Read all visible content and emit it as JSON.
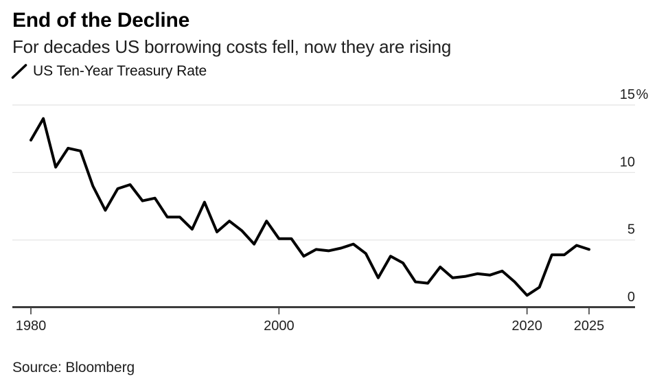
{
  "header": {
    "title": "End of the Decline",
    "subtitle": "For decades US borrowing costs fell, now they are rising"
  },
  "legend": {
    "label": "US Ten-Year Treasury Rate",
    "marker_icon": "diagonal-line-icon"
  },
  "footer": {
    "source": "Source: Bloomberg"
  },
  "colors": {
    "line": "#000000",
    "grid": "#e2e2e2",
    "axis": "#3c3c3c",
    "tick_label": "#1f1f1f"
  },
  "chart_data": {
    "type": "line",
    "title": "End of the Decline",
    "subtitle": "For decades US borrowing costs fell, now they are rising",
    "legend_entries": [
      "US Ten-Year Treasury Rate"
    ],
    "legend_position": "top-left",
    "grid": "horizontal-only",
    "xlabel": "",
    "ylabel": "",
    "y_unit": "%",
    "xlim": [
      1980,
      2025
    ],
    "ylim": [
      0,
      15
    ],
    "x_ticks": [
      1980,
      2000,
      2020,
      2025
    ],
    "x_tick_labels": [
      "1980",
      "2000",
      "2020",
      "2025"
    ],
    "y_ticks": [
      0,
      5,
      10,
      15
    ],
    "y_tick_labels": [
      "0",
      "5",
      "10",
      "15%"
    ],
    "x": [
      1980,
      1981,
      1982,
      1983,
      1984,
      1985,
      1986,
      1987,
      1988,
      1989,
      1990,
      1991,
      1992,
      1993,
      1994,
      1995,
      1996,
      1997,
      1998,
      1999,
      2000,
      2001,
      2002,
      2003,
      2004,
      2005,
      2006,
      2007,
      2008,
      2009,
      2010,
      2011,
      2012,
      2013,
      2014,
      2015,
      2016,
      2017,
      2018,
      2019,
      2020,
      2021,
      2022,
      2023,
      2024,
      2025
    ],
    "series": [
      {
        "name": "US Ten-Year Treasury Rate",
        "values": [
          12.4,
          14.0,
          10.4,
          11.8,
          11.6,
          9.0,
          7.2,
          8.8,
          9.1,
          7.9,
          8.1,
          6.7,
          6.7,
          5.8,
          7.8,
          5.6,
          6.4,
          5.7,
          4.7,
          6.4,
          5.1,
          5.1,
          3.8,
          4.3,
          4.2,
          4.4,
          4.7,
          4.0,
          2.2,
          3.8,
          3.3,
          1.9,
          1.8,
          3.0,
          2.2,
          2.3,
          2.5,
          2.4,
          2.7,
          1.9,
          0.9,
          1.5,
          3.9,
          3.9,
          4.6,
          4.3
        ]
      }
    ],
    "source": "Source: Bloomberg"
  }
}
